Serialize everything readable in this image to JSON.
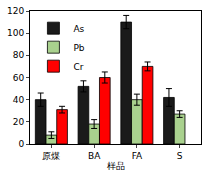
{
  "chart_data": {
    "type": "bar",
    "x_label": "样品",
    "categories": [
      "原煤",
      "BA",
      "FA",
      "S"
    ],
    "series": [
      {
        "name": "As",
        "color": "#1a1a1a",
        "values": [
          40,
          52,
          110,
          42
        ],
        "errors": [
          6,
          5,
          6,
          8
        ]
      },
      {
        "name": "Pb",
        "color": "#a9d18e",
        "values": [
          8,
          18,
          40,
          27
        ],
        "errors": [
          3,
          4,
          5,
          3
        ]
      },
      {
        "name": "Cr",
        "color": "#ff0000",
        "values": [
          31,
          60,
          70,
          null
        ],
        "errors": [
          3,
          5,
          4,
          null
        ]
      }
    ],
    "ylim": [
      0,
      120
    ],
    "yticks": [
      0,
      20,
      40,
      60,
      80,
      100,
      120
    ],
    "grid": false,
    "legend": "top-left"
  }
}
